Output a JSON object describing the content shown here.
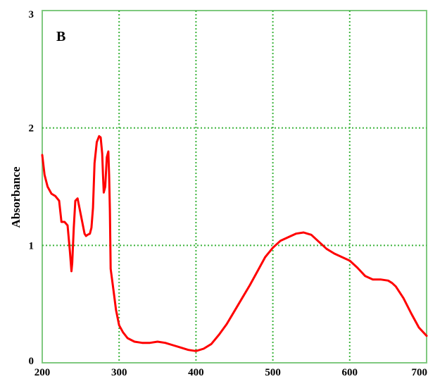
{
  "chart_data": {
    "type": "line",
    "panel_label": "B",
    "title": "",
    "xlabel": "",
    "ylabel": "Absorbance",
    "xlim": [
      200,
      700
    ],
    "ylim": [
      0,
      3
    ],
    "x_ticks": [
      "200",
      "300",
      "400",
      "500",
      "600",
      "700"
    ],
    "y_ticks": [
      "0",
      "1",
      "2",
      "3"
    ],
    "grid": true,
    "grid_style": "dotted",
    "line_color": "#ff0000",
    "grid_color": "#3cb43c",
    "frame_color": "#7fc97f",
    "series": [
      {
        "x": [
          200,
          203,
          207,
          212,
          217,
          222,
          225,
          229,
          233,
          236,
          238,
          239,
          241,
          243,
          246,
          249,
          252,
          255,
          257,
          259,
          262,
          264,
          266,
          268,
          271,
          274,
          276,
          278,
          279,
          280,
          282,
          284,
          286,
          287,
          288,
          289,
          291,
          293,
          296,
          300,
          305,
          311,
          320,
          330,
          340,
          350,
          360,
          370,
          380,
          390,
          400,
          410,
          420,
          430,
          440,
          450,
          460,
          470,
          480,
          490,
          500,
          510,
          520,
          530,
          540,
          545,
          550,
          560,
          570,
          580,
          590,
          600,
          610,
          620,
          630,
          640,
          650,
          655,
          660,
          670,
          680,
          690,
          700
        ],
        "y": [
          1.77,
          1.6,
          1.5,
          1.44,
          1.42,
          1.38,
          1.2,
          1.2,
          1.17,
          0.95,
          0.78,
          0.85,
          1.15,
          1.38,
          1.4,
          1.3,
          1.2,
          1.1,
          1.08,
          1.09,
          1.1,
          1.15,
          1.32,
          1.7,
          1.88,
          1.93,
          1.92,
          1.78,
          1.6,
          1.45,
          1.5,
          1.75,
          1.8,
          1.6,
          1.3,
          0.8,
          0.7,
          0.6,
          0.45,
          0.32,
          0.26,
          0.21,
          0.18,
          0.17,
          0.17,
          0.18,
          0.17,
          0.15,
          0.13,
          0.11,
          0.1,
          0.12,
          0.16,
          0.24,
          0.33,
          0.44,
          0.55,
          0.66,
          0.78,
          0.9,
          0.98,
          1.04,
          1.07,
          1.1,
          1.11,
          1.1,
          1.09,
          1.03,
          0.97,
          0.93,
          0.9,
          0.87,
          0.81,
          0.74,
          0.71,
          0.71,
          0.7,
          0.68,
          0.65,
          0.55,
          0.42,
          0.3,
          0.23
        ]
      }
    ]
  }
}
